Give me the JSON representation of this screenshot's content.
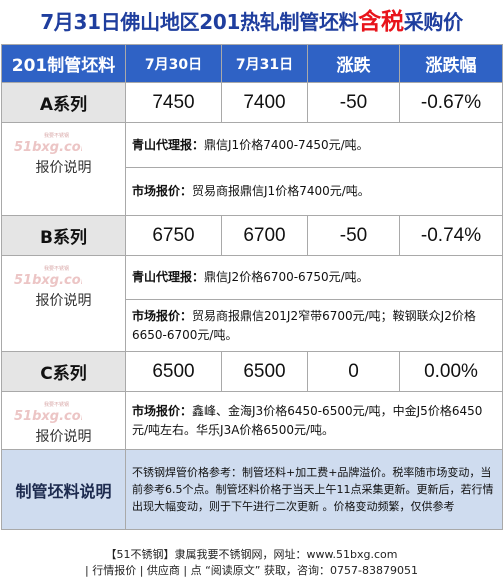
{
  "title": {
    "prefix": "7月31日佛山地区201热轧制管坯料",
    "highlight": "含税",
    "suffix": "采购价"
  },
  "header": {
    "col1": "201制管坯料",
    "col2": "7月30日",
    "col3": "7月31日",
    "col4": "涨跌",
    "col5": "涨跌幅"
  },
  "series": [
    {
      "name": "A系列",
      "prev": "7450",
      "curr": "7400",
      "change": "-50",
      "pct": "-0.67%",
      "label": "报价说明",
      "detail1_key": "青山代理报：",
      "detail1_text": "鼎信J1价格7400-7450元/吨。",
      "detail2_key": "市场报价：",
      "detail2_text": "贸易商报鼎信J1价格7400元/吨。"
    },
    {
      "name": "B系列",
      "prev": "6750",
      "curr": "6700",
      "change": "-50",
      "pct": "-0.74%",
      "label": "报价说明",
      "detail1_key": "青山代理报：",
      "detail1_text": "鼎信J2价格6700-6750元/吨。",
      "detail2_key": "市场报价：",
      "detail2_text": "贸易商报鼎信201J2窄带6700元/吨；鞍钢联众J2价格6650-6700元/吨。"
    },
    {
      "name": "C系列",
      "prev": "6500",
      "curr": "6500",
      "change": "0",
      "pct": "0.00%",
      "label": "报价说明",
      "detail1_key": "市场报价：",
      "detail1_text": "鑫峰、金海J3价格6450-6500元/吨，中金J5价格6450元/吨左右。华乐J3A价格6500元/吨。"
    }
  ],
  "watermark": {
    "small": "我要不锈钢",
    "big": "51bxg.com"
  },
  "note": {
    "label": "制管坯料说明",
    "text": "不锈钢焊管价格参考：制管坯料+加工费+品牌溢价。税率随市场变动，当前参考6.5个点。制管坯料价格于当天上午11点采集更新。更新后，若行情出现大幅变动，则于下午进行二次更新 。价格变动频繁，仅供参考"
  },
  "footer": {
    "line1": "【51不锈钢】隶属我要不锈钢网，网址：www.51bxg.com",
    "line2": "| 行情报价 | 供应商 | 点 “阅读原文” 获取，咨询：0757-83879051"
  },
  "colors": {
    "title": "#1f3e9e",
    "highlight": "#e8141b",
    "header_bg": "#2f62c5",
    "series_bg": "#e5e5e5",
    "note_bg": "#cfdcef"
  }
}
